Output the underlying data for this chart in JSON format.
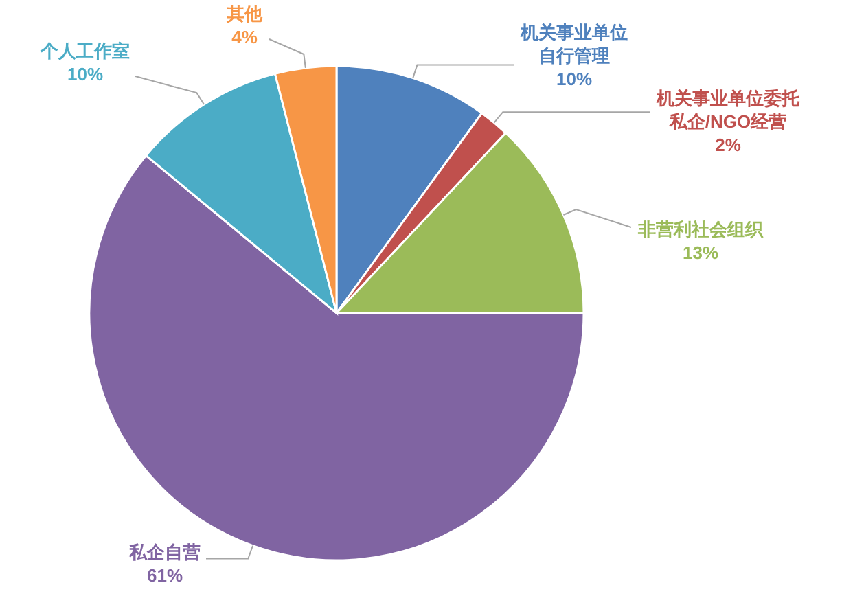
{
  "chart_data": {
    "type": "pie",
    "categories": [
      "机关事业单位自行管理",
      "机关事业单位委托私企/NGO经营",
      "非营利社会组织",
      "私企自营",
      "个人工作室",
      "其他"
    ],
    "values": [
      10,
      2,
      13,
      61,
      10,
      4
    ],
    "value_labels": [
      "10%",
      "2%",
      "13%",
      "61%",
      "10%",
      "4%"
    ],
    "colors": [
      "#4f81bd",
      "#c0504d",
      "#9bbb59",
      "#8064a2",
      "#4bacc6",
      "#f79646"
    ]
  }
}
